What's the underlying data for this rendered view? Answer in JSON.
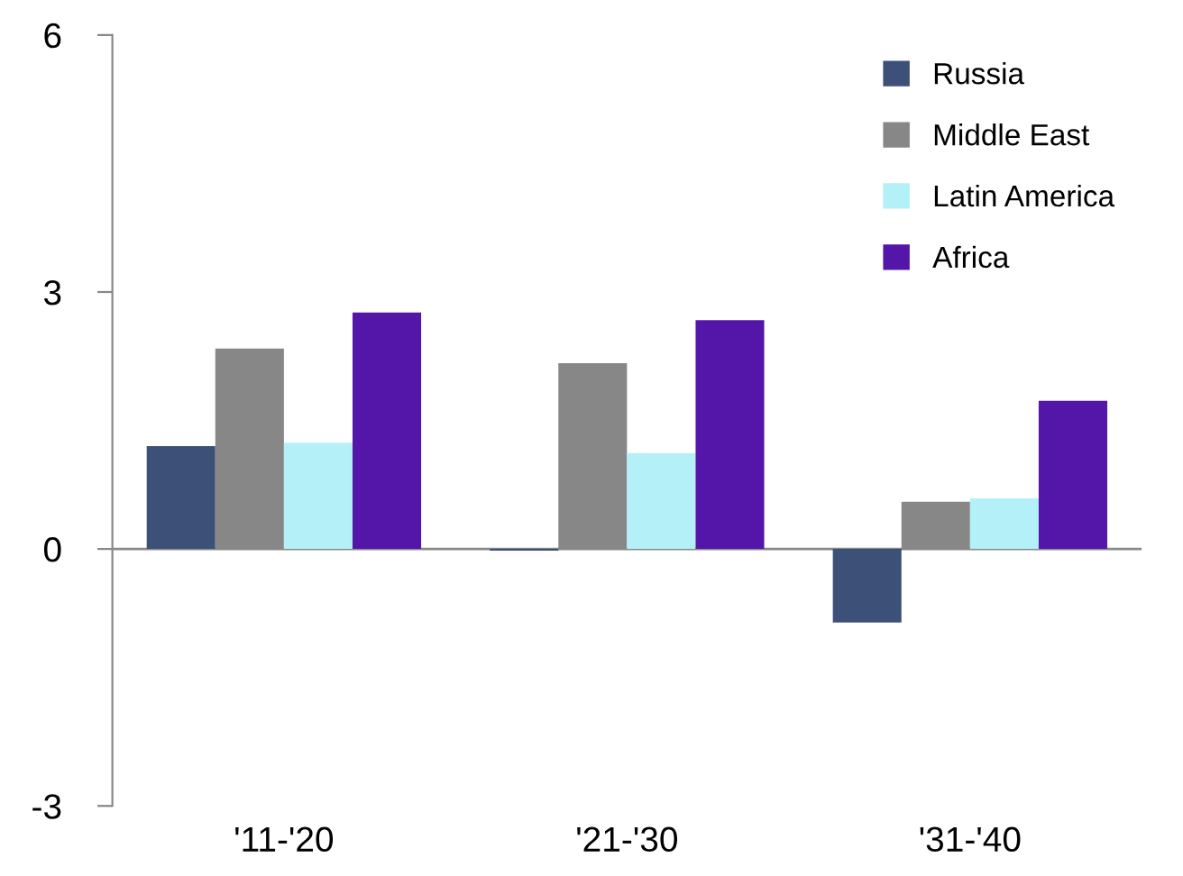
{
  "chart_data": {
    "type": "bar",
    "categories": [
      "'11-'20",
      "'21-'30",
      "'31-'40"
    ],
    "series": [
      {
        "name": "Russia",
        "color": "#3d5078",
        "values": [
          1.2,
          -0.02,
          -0.86
        ]
      },
      {
        "name": "Middle East",
        "color": "#878787",
        "values": [
          2.34,
          2.17,
          0.55
        ]
      },
      {
        "name": "Latin America",
        "color": "#b3f0f8",
        "values": [
          1.24,
          1.12,
          0.59
        ]
      },
      {
        "name": "Africa",
        "color": "#5416a8",
        "values": [
          2.76,
          2.67,
          1.73
        ]
      }
    ],
    "ylim": [
      -3,
      6
    ],
    "yticks": [
      -3,
      0,
      3,
      6
    ],
    "ref_lines": [
      {
        "axis": "y",
        "value": 0,
        "color": "#888888"
      }
    ],
    "legend": "top right"
  }
}
